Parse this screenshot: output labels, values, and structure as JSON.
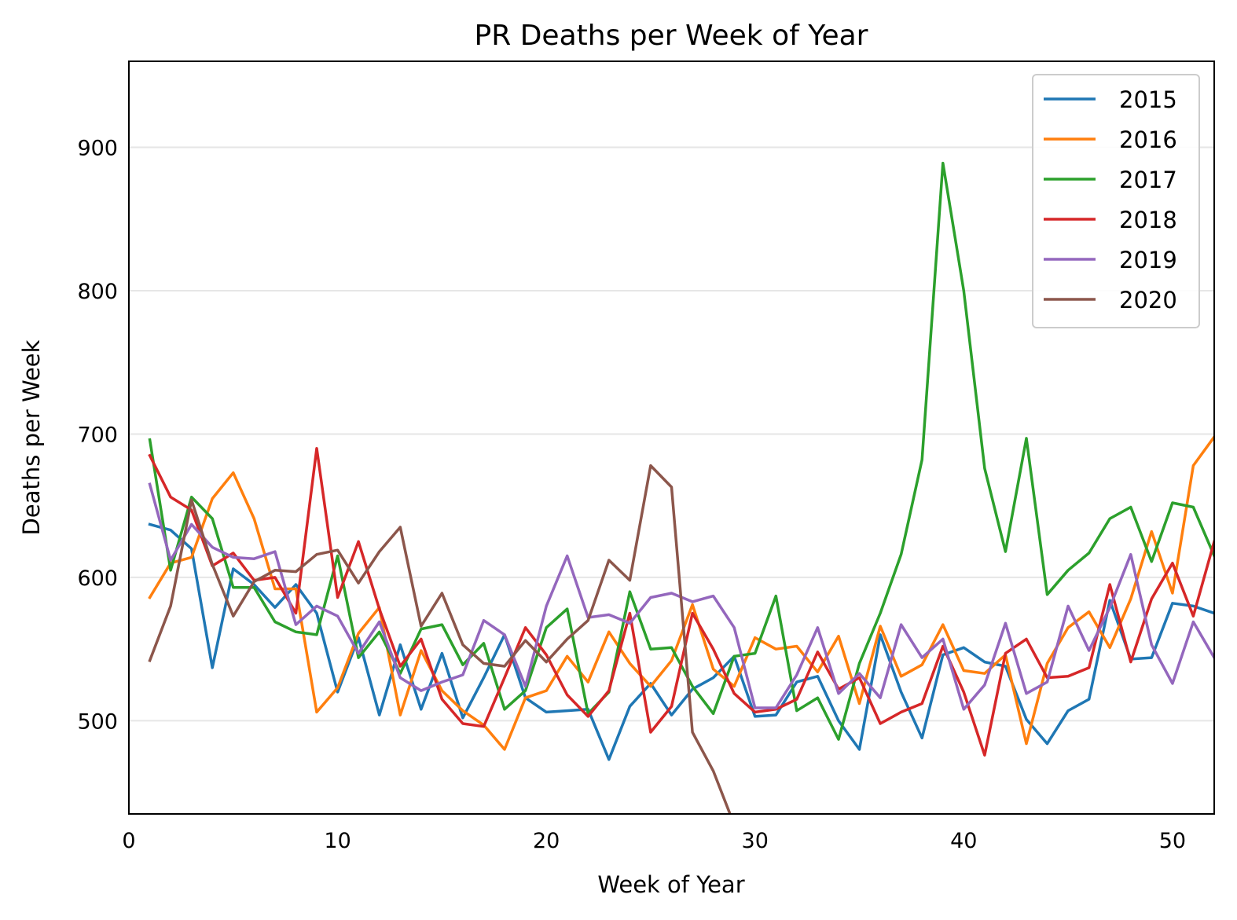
{
  "chart_data": {
    "type": "line",
    "title": "PR Deaths per Week of Year",
    "xlabel": "Week of Year",
    "ylabel": "Deaths per Week",
    "xlim": [
      0,
      52
    ],
    "ylim": [
      435,
      960
    ],
    "xticks": [
      0,
      10,
      20,
      30,
      40,
      50
    ],
    "yticks": [
      500,
      600,
      700,
      800,
      900
    ],
    "grid": "horizontal",
    "legend_position": "top-right",
    "series": [
      {
        "name": "2015",
        "color": "#1f77b4",
        "x": [
          1,
          2,
          3,
          4,
          5,
          6,
          7,
          8,
          9,
          10,
          11,
          12,
          13,
          14,
          15,
          16,
          17,
          18,
          19,
          20,
          21,
          22,
          23,
          24,
          25,
          26,
          27,
          28,
          29,
          30,
          31,
          32,
          33,
          34,
          35,
          36,
          37,
          38,
          39,
          40,
          41,
          42,
          43,
          44,
          45,
          46,
          47,
          48,
          49,
          50,
          51,
          52
        ],
        "values": [
          637,
          633,
          620,
          537,
          606,
          595,
          579,
          595,
          575,
          520,
          558,
          504,
          553,
          508,
          547,
          502,
          530,
          560,
          516,
          506,
          507,
          508,
          473,
          510,
          526,
          504,
          522,
          530,
          545,
          503,
          504,
          527,
          531,
          500,
          480,
          560,
          520,
          488,
          546,
          551,
          541,
          538,
          501,
          484,
          507,
          515,
          584,
          543,
          544,
          582,
          580,
          575
        ]
      },
      {
        "name": "2016",
        "color": "#ff7f0e",
        "x": [
          1,
          2,
          3,
          4,
          5,
          6,
          7,
          8,
          9,
          10,
          11,
          12,
          13,
          14,
          15,
          16,
          17,
          18,
          19,
          20,
          21,
          22,
          23,
          24,
          25,
          26,
          27,
          28,
          29,
          30,
          31,
          32,
          33,
          34,
          35,
          36,
          37,
          38,
          39,
          40,
          41,
          42,
          43,
          44,
          45,
          46,
          47,
          48,
          49,
          50,
          51,
          52
        ],
        "values": [
          586,
          610,
          614,
          655,
          673,
          641,
          592,
          592,
          506,
          523,
          561,
          579,
          504,
          549,
          521,
          507,
          497,
          480,
          516,
          521,
          545,
          527,
          562,
          540,
          524,
          542,
          581,
          536,
          524,
          558,
          550,
          552,
          534,
          559,
          512,
          566,
          531,
          539,
          567,
          535,
          533,
          546,
          484,
          540,
          565,
          576,
          551,
          585,
          632,
          589,
          678,
          698
        ]
      },
      {
        "name": "2017",
        "color": "#2ca02c",
        "x": [
          1,
          2,
          3,
          4,
          5,
          6,
          7,
          8,
          9,
          10,
          11,
          12,
          13,
          14,
          15,
          16,
          17,
          18,
          19,
          20,
          21,
          22,
          23,
          24,
          25,
          26,
          27,
          28,
          29,
          30,
          31,
          32,
          33,
          34,
          35,
          36,
          37,
          38,
          39,
          40,
          41,
          42,
          43,
          44,
          45,
          46,
          47,
          48,
          49,
          50,
          51,
          52
        ],
        "values": [
          696,
          605,
          656,
          641,
          593,
          593,
          569,
          562,
          560,
          615,
          544,
          562,
          533,
          564,
          567,
          539,
          554,
          508,
          521,
          565,
          578,
          505,
          520,
          590,
          550,
          551,
          524,
          505,
          545,
          547,
          587,
          507,
          516,
          487,
          540,
          575,
          616,
          682,
          889,
          800,
          676,
          618,
          697,
          588,
          605,
          617,
          641,
          649,
          611,
          652,
          649,
          615
        ]
      },
      {
        "name": "2018",
        "color": "#d62728",
        "x": [
          1,
          2,
          3,
          4,
          5,
          6,
          7,
          8,
          9,
          10,
          11,
          12,
          13,
          14,
          15,
          16,
          17,
          18,
          19,
          20,
          21,
          22,
          23,
          24,
          25,
          26,
          27,
          28,
          29,
          30,
          31,
          32,
          33,
          34,
          35,
          36,
          37,
          38,
          39,
          40,
          41,
          42,
          43,
          44,
          45,
          46,
          47,
          48,
          49,
          50,
          51,
          52
        ],
        "values": [
          685,
          656,
          647,
          608,
          617,
          598,
          600,
          575,
          690,
          586,
          625,
          578,
          538,
          557,
          515,
          498,
          496,
          530,
          565,
          546,
          518,
          503,
          521,
          575,
          492,
          510,
          575,
          550,
          519,
          506,
          508,
          515,
          548,
          522,
          530,
          498,
          506,
          512,
          552,
          520,
          476,
          547,
          557,
          530,
          531,
          537,
          595,
          541,
          585,
          610,
          573,
          625
        ]
      },
      {
        "name": "2019",
        "color": "#9467bd",
        "x": [
          1,
          2,
          3,
          4,
          5,
          6,
          7,
          8,
          9,
          10,
          11,
          12,
          13,
          14,
          15,
          16,
          17,
          18,
          19,
          20,
          21,
          22,
          23,
          24,
          25,
          26,
          27,
          28,
          29,
          30,
          31,
          32,
          33,
          34,
          35,
          36,
          37,
          38,
          39,
          40,
          41,
          42,
          43,
          44,
          45,
          46,
          47,
          48,
          49,
          50,
          51,
          52
        ],
        "values": [
          665,
          612,
          637,
          621,
          614,
          613,
          618,
          567,
          580,
          573,
          547,
          569,
          530,
          521,
          527,
          532,
          570,
          560,
          524,
          580,
          615,
          572,
          574,
          568,
          586,
          589,
          583,
          587,
          565,
          509,
          509,
          532,
          565,
          519,
          533,
          516,
          567,
          544,
          557,
          508,
          525,
          568,
          519,
          527,
          580,
          549,
          579,
          616,
          553,
          526,
          569,
          544
        ]
      },
      {
        "name": "2020",
        "color": "#8c564b",
        "x": [
          1,
          2,
          3,
          4,
          5,
          6,
          7,
          8,
          9,
          10,
          11,
          12,
          13,
          14,
          15,
          16,
          17,
          18,
          19,
          20,
          21,
          22,
          23,
          24,
          25,
          26,
          27,
          28,
          28.8
        ],
        "values": [
          542,
          580,
          654,
          609,
          573,
          597,
          605,
          604,
          616,
          619,
          596,
          618,
          635,
          566,
          589,
          553,
          540,
          538,
          556,
          541,
          557,
          570,
          612,
          598,
          678,
          663,
          492,
          465,
          435
        ]
      }
    ]
  }
}
